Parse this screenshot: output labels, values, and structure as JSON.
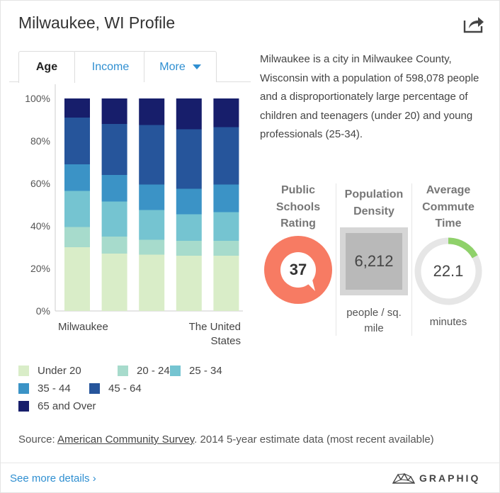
{
  "header": {
    "title": "Milwaukee, WI Profile",
    "share_icon": "share-icon"
  },
  "tabs": [
    {
      "label": "Age"
    },
    {
      "label": "Income"
    },
    {
      "label": "More"
    }
  ],
  "description": "Milwaukee is a city in Milwaukee County, Wisconsin with a population of 598,078 people and a disproportionately large percentage of children and teenagers (under 20) and young professionals (25-34).",
  "stats": {
    "schools": {
      "title_lines": [
        "Public",
        "Schools",
        "Rating"
      ],
      "value": "37",
      "color": "#f77b63"
    },
    "density": {
      "title_lines": [
        "Population",
        "Density"
      ],
      "value": "6,212",
      "unit_lines": [
        "people / sq.",
        "mile"
      ]
    },
    "commute": {
      "title_lines": [
        "Average",
        "Commute",
        "Time"
      ],
      "value": "22.1",
      "unit": "minutes",
      "fraction": 0.17,
      "color": "#8fd16a"
    }
  },
  "chart_data": {
    "type": "bar",
    "stacked": true,
    "ylim": [
      0,
      100
    ],
    "yticks": [
      "0%",
      "20%",
      "40%",
      "60%",
      "80%",
      "100%"
    ],
    "x_labels": [
      "Milwaukee",
      "",
      "",
      "",
      "The United States"
    ],
    "series": [
      {
        "name": "Under 20",
        "color": "#d9edc8",
        "values": [
          30,
          27,
          26.5,
          26,
          26
        ]
      },
      {
        "name": "20 - 24",
        "color": "#a7dbcc",
        "values": [
          9.5,
          8,
          7,
          7,
          7
        ]
      },
      {
        "name": "25 - 34",
        "color": "#75c4d1",
        "values": [
          17,
          16.5,
          14,
          12.5,
          13.5
        ]
      },
      {
        "name": "35 - 44",
        "color": "#3b93c6",
        "values": [
          12.5,
          12.5,
          12,
          12,
          13
        ]
      },
      {
        "name": "45 - 64",
        "color": "#26559b",
        "values": [
          22,
          24,
          28,
          28,
          27
        ]
      },
      {
        "name": "65 and Over",
        "color": "#171e6b",
        "values": [
          9,
          12,
          12.5,
          14.5,
          13.5
        ]
      }
    ]
  },
  "source": {
    "prefix": "Source: ",
    "link": "American Community Survey",
    "suffix": ". 2014 5-year estimate data (most recent available)"
  },
  "footer": {
    "see_more": "See more details ›",
    "brand": "GRAPHIQ"
  }
}
